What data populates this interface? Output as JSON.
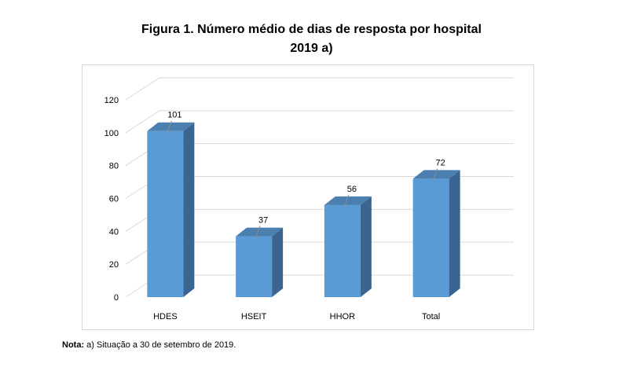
{
  "page": {
    "title_line1": "Figura 1. Número médio de dias de resposta por hospital",
    "title_line2": "2019 a)",
    "note_label": "Nota:",
    "note_text": " a) Situação a 30 de setembro de 2019."
  },
  "chart_data": {
    "type": "bar",
    "style": "3d-column",
    "title": "Figura 1. Número médio de dias de resposta por hospital 2019 a)",
    "xlabel": "",
    "ylabel": "",
    "categories": [
      "HDES",
      "HSEIT",
      "HHOR",
      "Total"
    ],
    "values": [
      101,
      37,
      56,
      72
    ],
    "data_labels": [
      "101",
      "37",
      "56",
      "72"
    ],
    "ylim": [
      0,
      120
    ],
    "yticks": [
      "0",
      "20",
      "40",
      "60",
      "80",
      "100",
      "120"
    ],
    "grid": true,
    "legend": "none",
    "colors": {
      "front": "#5b9bd5",
      "side": "#3a6590",
      "top": "#4a7fb0",
      "grid": "#d9d9d9",
      "axis_text": "#000000"
    }
  }
}
